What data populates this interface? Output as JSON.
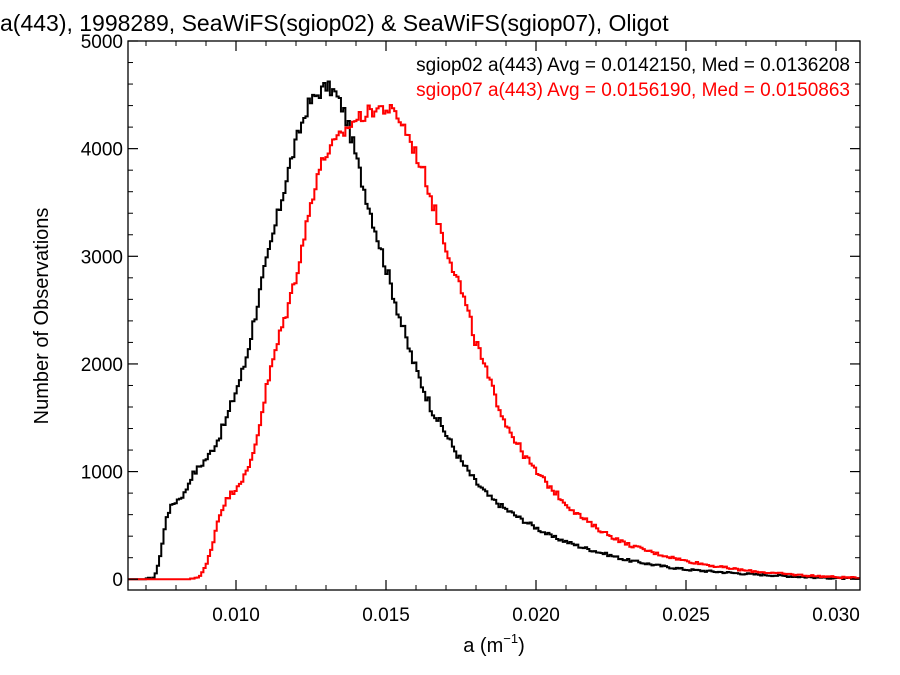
{
  "chart_data": {
    "type": "line",
    "title": "a(443), 1998289, SeaWiFS(sgiop02) & SeaWiFS(sgiop07), Oligot",
    "xlabel_main": "a (m",
    "xlabel_sup": "−1",
    "xlabel_close": ")",
    "ylabel": "Number of Observations",
    "xlim": [
      0.0064,
      0.0308
    ],
    "ylim": [
      -100,
      5000
    ],
    "x_ticks": [
      0.01,
      0.015,
      0.02,
      0.025,
      0.03
    ],
    "x_tick_labels": [
      "0.010",
      "0.015",
      "0.020",
      "0.025",
      "0.030"
    ],
    "y_ticks": [
      0,
      1000,
      2000,
      3000,
      4000,
      5000
    ],
    "y_tick_labels": [
      "0",
      "1000",
      "2000",
      "3000",
      "4000",
      "5000"
    ],
    "legend_placement": "top-right",
    "series": [
      {
        "name": "sgiop02",
        "color": "#000000",
        "legend": "sgiop02 a(443) Avg = 0.0142150, Med = 0.0136208",
        "points": [
          [
            0.0064,
            0
          ],
          [
            0.007,
            0
          ],
          [
            0.0073,
            20
          ],
          [
            0.0075,
            250
          ],
          [
            0.0077,
            600
          ],
          [
            0.0079,
            700
          ],
          [
            0.0081,
            750
          ],
          [
            0.0083,
            800
          ],
          [
            0.0085,
            950
          ],
          [
            0.0088,
            1050
          ],
          [
            0.0091,
            1150
          ],
          [
            0.0094,
            1300
          ],
          [
            0.0097,
            1500
          ],
          [
            0.01,
            1750
          ],
          [
            0.0103,
            2000
          ],
          [
            0.0106,
            2400
          ],
          [
            0.0109,
            2800
          ],
          [
            0.0112,
            3150
          ],
          [
            0.0115,
            3500
          ],
          [
            0.0118,
            3850
          ],
          [
            0.0121,
            4150
          ],
          [
            0.0124,
            4400
          ],
          [
            0.0127,
            4500
          ],
          [
            0.013,
            4580
          ],
          [
            0.0133,
            4520
          ],
          [
            0.0136,
            4350
          ],
          [
            0.0139,
            4050
          ],
          [
            0.0142,
            3700
          ],
          [
            0.0145,
            3400
          ],
          [
            0.0148,
            3100
          ],
          [
            0.0151,
            2800
          ],
          [
            0.0154,
            2500
          ],
          [
            0.0157,
            2200
          ],
          [
            0.016,
            1950
          ],
          [
            0.0165,
            1600
          ],
          [
            0.017,
            1350
          ],
          [
            0.0175,
            1100
          ],
          [
            0.018,
            900
          ],
          [
            0.0185,
            750
          ],
          [
            0.019,
            650
          ],
          [
            0.0195,
            560
          ],
          [
            0.02,
            480
          ],
          [
            0.0205,
            400
          ],
          [
            0.021,
            350
          ],
          [
            0.0215,
            300
          ],
          [
            0.022,
            260
          ],
          [
            0.0225,
            220
          ],
          [
            0.023,
            180
          ],
          [
            0.024,
            130
          ],
          [
            0.025,
            90
          ],
          [
            0.026,
            70
          ],
          [
            0.027,
            50
          ],
          [
            0.028,
            35
          ],
          [
            0.029,
            20
          ],
          [
            0.03,
            10
          ],
          [
            0.0308,
            5
          ]
        ]
      },
      {
        "name": "sgiop07",
        "color": "#ff0000",
        "legend": "sgiop07 a(443) Avg = 0.0156190, Med = 0.0150863",
        "points": [
          [
            0.0064,
            0
          ],
          [
            0.0085,
            0
          ],
          [
            0.0088,
            30
          ],
          [
            0.009,
            120
          ],
          [
            0.0092,
            300
          ],
          [
            0.0094,
            550
          ],
          [
            0.0096,
            700
          ],
          [
            0.0098,
            780
          ],
          [
            0.01,
            850
          ],
          [
            0.0102,
            930
          ],
          [
            0.0104,
            1000
          ],
          [
            0.0106,
            1200
          ],
          [
            0.0108,
            1450
          ],
          [
            0.011,
            1750
          ],
          [
            0.0113,
            2100
          ],
          [
            0.0116,
            2400
          ],
          [
            0.0119,
            2700
          ],
          [
            0.0121,
            2950
          ],
          [
            0.0124,
            3350
          ],
          [
            0.0127,
            3750
          ],
          [
            0.013,
            3950
          ],
          [
            0.0133,
            4050
          ],
          [
            0.0136,
            4150
          ],
          [
            0.0139,
            4250
          ],
          [
            0.0142,
            4300
          ],
          [
            0.0145,
            4350
          ],
          [
            0.0148,
            4380
          ],
          [
            0.0151,
            4360
          ],
          [
            0.0154,
            4300
          ],
          [
            0.0157,
            4150
          ],
          [
            0.016,
            3950
          ],
          [
            0.0163,
            3750
          ],
          [
            0.0166,
            3450
          ],
          [
            0.017,
            3100
          ],
          [
            0.0175,
            2700
          ],
          [
            0.018,
            2200
          ],
          [
            0.0185,
            1800
          ],
          [
            0.019,
            1450
          ],
          [
            0.0195,
            1200
          ],
          [
            0.02,
            1000
          ],
          [
            0.0205,
            850
          ],
          [
            0.021,
            700
          ],
          [
            0.0215,
            580
          ],
          [
            0.022,
            480
          ],
          [
            0.0225,
            400
          ],
          [
            0.023,
            330
          ],
          [
            0.024,
            240
          ],
          [
            0.025,
            170
          ],
          [
            0.026,
            120
          ],
          [
            0.027,
            80
          ],
          [
            0.028,
            55
          ],
          [
            0.029,
            35
          ],
          [
            0.03,
            20
          ],
          [
            0.0308,
            10
          ]
        ]
      }
    ]
  }
}
